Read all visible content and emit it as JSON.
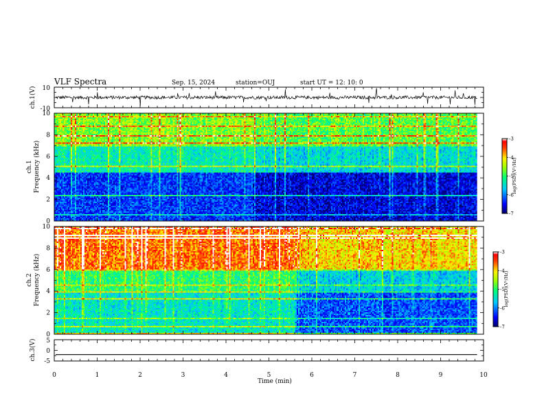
{
  "header": {
    "title": "VLF Spectra",
    "date": "Sep. 15, 2024",
    "station": "station=OUJ",
    "start": "start UT =  12: 10: 0"
  },
  "panels": {
    "ch1": {
      "ylabel": "ch.1(V)",
      "ytick_top": "10",
      "ytick_bottom": "-10"
    },
    "spec1": {
      "ylabel_ch": "ch.1",
      "ylabel": "Frequency (kHz)",
      "yticks": [
        "0",
        "2",
        "4",
        "6",
        "8",
        "10"
      ],
      "colorbar_label": "log(PSD)(V²/Hz)",
      "colorbar_ticks": [
        "-3",
        "-4",
        "-5",
        "-6",
        "-7"
      ]
    },
    "spec2": {
      "ylabel_ch": "ch.2",
      "ylabel": "Frequency (kHz)",
      "yticks": [
        "0",
        "2",
        "4",
        "6",
        "8",
        "10"
      ],
      "colorbar_label": "log(PSD)(V²/Hz)",
      "colorbar_ticks": [
        "-3",
        "-4",
        "-5",
        "-6",
        "-7"
      ]
    },
    "ch3": {
      "ylabel": "ch.3(V)",
      "ytick_top": "5",
      "ytick_mid": "0",
      "ytick_bottom": "-5"
    }
  },
  "xaxis": {
    "label": "Time (min)",
    "ticks": [
      "0",
      "1",
      "2",
      "3",
      "4",
      "5",
      "6",
      "7",
      "8",
      "9",
      "10"
    ]
  },
  "chart_data": [
    {
      "type": "line",
      "ylabel": "ch.1(V)",
      "xlabel": "Time (min)",
      "xlim": [
        0,
        10
      ],
      "ylim": [
        -10,
        10
      ],
      "mean_level": 0,
      "data_end_minute": 9.85
    },
    {
      "type": "heatmap",
      "ylabel": "Frequency (kHz)",
      "xlim": [
        0,
        10
      ],
      "ylim": [
        0,
        10
      ],
      "colorbar_range": [
        -7,
        -3
      ],
      "colorbar_label": "log(PSD)(V²/Hz)",
      "data_end_minute": 9.85,
      "bands_log_psd": [
        {
          "freq_kHz": [
            0,
            4.5
          ],
          "before_min": 4.6,
          "early": -6.3,
          "late": -6.6
        },
        {
          "freq_kHz": [
            4.5,
            7
          ],
          "before_min": 4.6,
          "early": -5.3,
          "late": -5.5
        },
        {
          "freq_kHz": [
            7,
            10
          ],
          "before_min": 4.6,
          "early": -4.6,
          "late": -4.8
        }
      ]
    },
    {
      "type": "heatmap",
      "ylabel": "Frequency (kHz)",
      "xlim": [
        0,
        10
      ],
      "ylim": [
        0,
        10
      ],
      "colorbar_range": [
        -7,
        -3
      ],
      "colorbar_label": "log(PSD)(V²/Hz)",
      "data_end_minute": 9.85,
      "bands_log_psd": [
        {
          "freq_kHz": [
            0,
            4
          ],
          "before_min": 5.6,
          "early": -5.4,
          "late": -6.2
        },
        {
          "freq_kHz": [
            4,
            6
          ],
          "before_min": 5.6,
          "early": -5.0,
          "late": -5.6
        },
        {
          "freq_kHz": [
            6,
            10
          ],
          "before_min": 5.6,
          "early": -3.6,
          "late": -4.0
        }
      ]
    },
    {
      "type": "line",
      "ylabel": "ch.3(V)",
      "xlabel": "Time (min)",
      "xlim": [
        0,
        10
      ],
      "ylim": [
        -5,
        5
      ],
      "mean_level": -2,
      "data_end_minute": 9.85
    }
  ],
  "colors": {
    "colormap": [
      "#00007f",
      "#0000ff",
      "#00ffff",
      "#00ff00",
      "#ffff00",
      "#ff0000",
      "#ffffff"
    ],
    "trace": "#000000"
  }
}
